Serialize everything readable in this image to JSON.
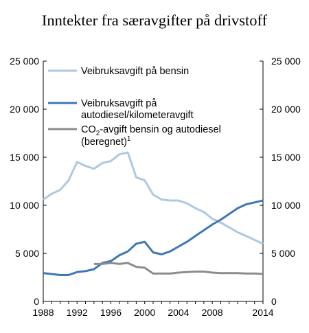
{
  "chart_data": {
    "type": "line",
    "title": "Inntekter fra særavgifter på drivstoff",
    "xlabel": "",
    "ylabel": "",
    "xlim": [
      1988,
      2014
    ],
    "ylim": [
      0,
      25000
    ],
    "x_ticks": [
      "1988",
      "1992",
      "1996",
      "2000",
      "2004",
      "2008",
      "2014"
    ],
    "x_tick_values": [
      1988,
      1992,
      1996,
      2000,
      2004,
      2008,
      2014
    ],
    "y_ticks": [
      "0",
      "5 000",
      "10 000",
      "15 000",
      "20 000",
      "25 000"
    ],
    "y_tick_values": [
      0,
      5000,
      10000,
      15000,
      20000,
      25000
    ],
    "grid": false,
    "legend_position": "top-left",
    "series": [
      {
        "name": "Veibruksavgift på bensin",
        "color": "#aec8e2",
        "x": [
          1988,
          1989,
          1990,
          1991,
          1992,
          1993,
          1994,
          1995,
          1996,
          1997,
          1998,
          1999,
          2000,
          2001,
          2002,
          2003,
          2004,
          2005,
          2006,
          2007,
          2008,
          2009,
          2010,
          2011,
          2012,
          2013,
          2014
        ],
        "values": [
          10600,
          11200,
          11600,
          12600,
          14500,
          14100,
          13800,
          14400,
          14600,
          15300,
          15500,
          12900,
          12600,
          11100,
          10600,
          10500,
          10500,
          10200,
          9700,
          9300,
          8600,
          8200,
          7700,
          7200,
          6800,
          6400,
          6000
        ]
      },
      {
        "name": "Veibruksavgift på autodiesel/kilometeravgift",
        "legend_lines": [
          "Veibruksavgift på",
          "autodiesel/kilometeravgift"
        ],
        "color": "#3f76b5",
        "x": [
          1988,
          1989,
          1990,
          1991,
          1992,
          1993,
          1994,
          1995,
          1996,
          1997,
          1998,
          1999,
          2000,
          2001,
          2002,
          2003,
          2004,
          2005,
          2006,
          2007,
          2008,
          2009,
          2010,
          2011,
          2012,
          2013,
          2014
        ],
        "values": [
          2950,
          2850,
          2750,
          2750,
          3050,
          3150,
          3350,
          4000,
          4200,
          4800,
          5200,
          6000,
          6200,
          5100,
          4900,
          5200,
          5700,
          6200,
          6800,
          7400,
          8000,
          8500,
          9100,
          9700,
          10100,
          10300,
          10500
        ]
      },
      {
        "name": "CO2-avgift bensin og autodiesel (beregnet)",
        "legend_line1_a": "CO",
        "legend_line1_sub": "2",
        "legend_line1_b": "-avgift bensin og autodiesel",
        "legend_line2": "(beregnet)",
        "legend_line2_sup": "1",
        "color": "#8c8c8c",
        "x": [
          1994,
          1995,
          1996,
          1997,
          1998,
          1999,
          2000,
          2001,
          2002,
          2003,
          2004,
          2005,
          2006,
          2007,
          2008,
          2009,
          2010,
          2011,
          2012,
          2013,
          2014
        ],
        "values": [
          3900,
          3900,
          4000,
          3900,
          4000,
          3600,
          3500,
          2900,
          2900,
          2900,
          3000,
          3050,
          3100,
          3100,
          3000,
          2950,
          2950,
          2950,
          2900,
          2900,
          2850
        ]
      }
    ]
  }
}
